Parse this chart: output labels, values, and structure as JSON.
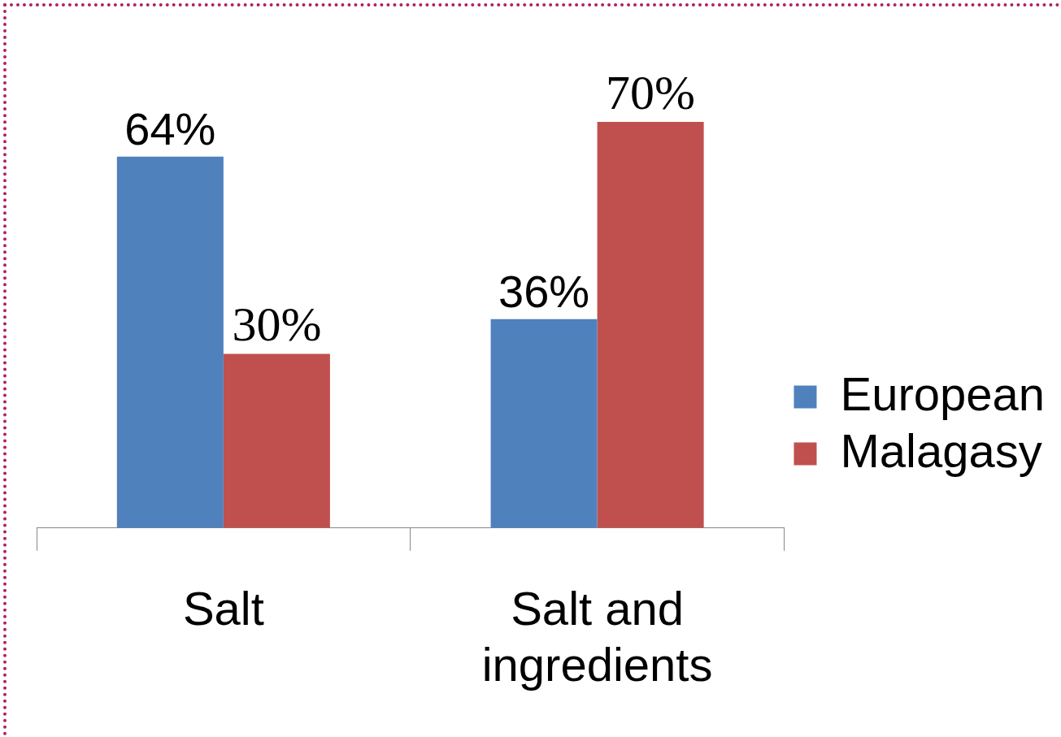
{
  "chart_data": {
    "type": "bar",
    "categories": [
      "Salt",
      "Salt and ingredients"
    ],
    "series": [
      {
        "name": "European",
        "color": "#4f81bd",
        "values": [
          64,
          36
        ],
        "value_labels": [
          "64%",
          "36%"
        ]
      },
      {
        "name": "Malagasy",
        "color": "#c0504d",
        "values": [
          30,
          70
        ],
        "value_labels": [
          "30%",
          "70%"
        ]
      }
    ],
    "legend": "right",
    "grid": false,
    "tick_labels": "x"
  }
}
